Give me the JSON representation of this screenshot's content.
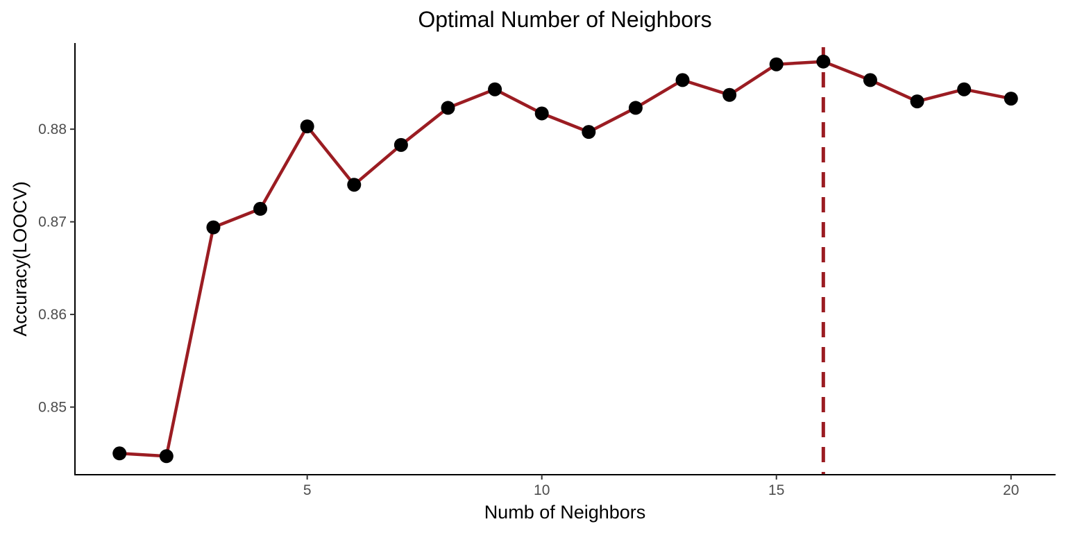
{
  "chart_data": {
    "type": "line",
    "title": "Optimal Number of Neighbors",
    "xlabel": "Numb of Neighbors",
    "ylabel": "Accuracy(LOOCV)",
    "x": [
      1,
      2,
      3,
      4,
      5,
      6,
      7,
      8,
      9,
      10,
      11,
      12,
      13,
      14,
      15,
      16,
      17,
      18,
      19,
      20
    ],
    "series": [
      {
        "values": [
          0.845,
          0.8447,
          0.8694,
          0.8714,
          0.8803,
          0.874,
          0.8783,
          0.8823,
          0.8843,
          0.8817,
          0.8797,
          0.8823,
          0.8853,
          0.8837,
          0.887,
          0.8873,
          0.8853,
          0.883,
          0.8843,
          0.8833
        ],
        "line_color": "#9b1c22",
        "marker_color": "#000000"
      }
    ],
    "xlim": [
      0.05,
      20.95
    ],
    "ylim": [
      0.8427,
      0.8893
    ],
    "xticks": [
      5,
      10,
      15,
      20
    ],
    "yticks": [
      0.85,
      0.86,
      0.87,
      0.88
    ],
    "ytick_labels": [
      "0.85",
      "0.86",
      "0.87",
      "0.88"
    ],
    "vline": {
      "x": 16,
      "color": "#9b1c22",
      "style": "dashed"
    },
    "grid": false,
    "legend": "none"
  }
}
